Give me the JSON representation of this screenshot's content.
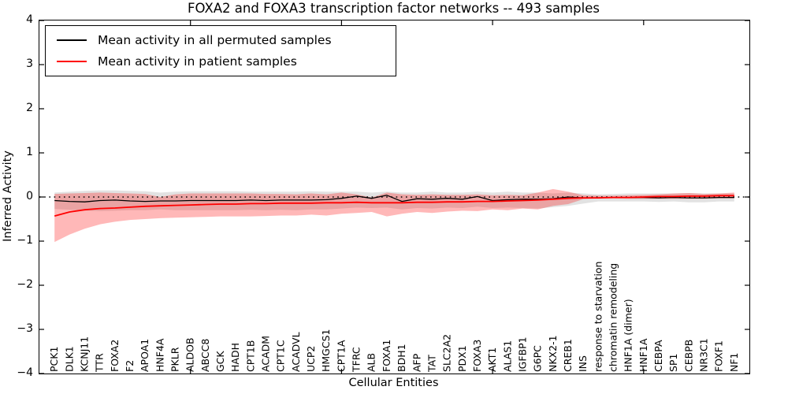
{
  "legend": {
    "items": [
      {
        "label": "Mean activity in all permuted samples",
        "color": "#000000"
      },
      {
        "label": "Mean activity in patient samples",
        "color": "#ff0000"
      }
    ]
  },
  "chart_data": {
    "type": "line",
    "title": "FOXA2 and FOXA3 transcription factor networks -- 493 samples",
    "xlabel": "Cellular Entities",
    "ylabel": "Inferred Activity",
    "ylim": [
      -4,
      4
    ],
    "yticks": [
      4,
      3,
      2,
      1,
      0,
      -1,
      -2,
      -3,
      -4
    ],
    "x_major_ticks": [
      10,
      20,
      30,
      40
    ],
    "grid": false,
    "legend_position": "upper left",
    "zero_reference_line": {
      "y": 0,
      "style": "dotted",
      "color": "#000000"
    },
    "categories": [
      "PCK1",
      "DLK1",
      "KCNJ11",
      "TTR",
      "FOXA2",
      "F2",
      "APOA1",
      "HNF4A",
      "PKLR",
      "ALDOB",
      "ABCC8",
      "GCK",
      "HADH",
      "CPT1B",
      "ACADM",
      "CPT1C",
      "ACADVL",
      "UCP2",
      "HMGCS1",
      "CPT1A",
      "TFRC",
      "ALB",
      "FOXA1",
      "BDH1",
      "AFP",
      "TAT",
      "SLC2A2",
      "PDX1",
      "FOXA3",
      "AKT1",
      "ALAS1",
      "IGFBP1",
      "G6PC",
      "NKX2-1",
      "CREB1",
      "INS",
      "response to starvation",
      "chromatin remodeling",
      "HNF1A (dimer)",
      "HNF1A",
      "CEBPA",
      "SP1",
      "CEBPB",
      "NR3C1",
      "FOXF1",
      "NF1"
    ],
    "series": [
      {
        "id": "permuted-mean-line",
        "name": "Mean activity in all permuted samples",
        "color": "#000000",
        "width": 1.3,
        "values": [
          -0.08,
          -0.1,
          -0.11,
          -0.08,
          -0.07,
          -0.09,
          -0.1,
          -0.09,
          -0.09,
          -0.08,
          -0.08,
          -0.08,
          -0.08,
          -0.07,
          -0.08,
          -0.07,
          -0.07,
          -0.07,
          -0.06,
          -0.03,
          0.02,
          -0.03,
          0.04,
          -0.1,
          -0.04,
          -0.05,
          -0.03,
          -0.05,
          0.01,
          -0.08,
          -0.06,
          -0.05,
          -0.05,
          -0.04,
          0.0,
          -0.02,
          -0.02,
          -0.01,
          -0.01,
          -0.01,
          -0.02,
          -0.01,
          -0.02,
          -0.02,
          -0.01,
          -0.01
        ]
      },
      {
        "id": "patient-mean-line",
        "name": "Mean activity in patient samples",
        "color": "#ff0000",
        "width": 1.8,
        "values": [
          -0.43,
          -0.34,
          -0.29,
          -0.26,
          -0.25,
          -0.23,
          -0.21,
          -0.2,
          -0.19,
          -0.18,
          -0.17,
          -0.16,
          -0.16,
          -0.15,
          -0.15,
          -0.14,
          -0.14,
          -0.14,
          -0.13,
          -0.13,
          -0.12,
          -0.13,
          -0.13,
          -0.13,
          -0.12,
          -0.12,
          -0.11,
          -0.11,
          -0.1,
          -0.1,
          -0.09,
          -0.08,
          -0.07,
          -0.05,
          -0.03,
          -0.02,
          -0.02,
          -0.01,
          -0.01,
          0.0,
          0.01,
          0.01,
          0.02,
          0.02,
          0.03,
          0.03
        ]
      }
    ],
    "bands": [
      {
        "name": "permuted-band",
        "color": "#969696",
        "opacity": 0.28,
        "upper": [
          0.1,
          0.12,
          0.14,
          0.15,
          0.15,
          0.14,
          0.13,
          0.1,
          0.12,
          0.13,
          0.13,
          0.13,
          0.13,
          0.12,
          0.12,
          0.12,
          0.12,
          0.13,
          0.12,
          0.12,
          0.12,
          0.1,
          0.12,
          0.1,
          0.1,
          0.12,
          0.1,
          0.1,
          0.12,
          0.1,
          0.12,
          0.1,
          0.1,
          0.08,
          0.1,
          0.08,
          0.06,
          0.07,
          0.08,
          0.08,
          0.08,
          0.08,
          0.09,
          0.08,
          0.08,
          0.08
        ],
        "lower": [
          -0.27,
          -0.29,
          -0.31,
          -0.32,
          -0.31,
          -0.3,
          -0.3,
          -0.28,
          -0.3,
          -0.3,
          -0.3,
          -0.3,
          -0.3,
          -0.29,
          -0.3,
          -0.29,
          -0.3,
          -0.28,
          -0.28,
          -0.26,
          -0.24,
          -0.25,
          -0.24,
          -0.28,
          -0.25,
          -0.26,
          -0.24,
          -0.25,
          -0.22,
          -0.25,
          -0.24,
          -0.25,
          -0.26,
          -0.23,
          -0.2,
          -0.15,
          -0.1,
          -0.1,
          -0.1,
          -0.1,
          -0.11,
          -0.1,
          -0.12,
          -0.12,
          -0.1,
          -0.1
        ]
      },
      {
        "name": "patient-band",
        "color": "#ff0000",
        "opacity": 0.28,
        "upper": [
          0.07,
          0.08,
          0.09,
          0.1,
          0.09,
          0.08,
          0.07,
          0.0,
          0.06,
          0.08,
          0.08,
          0.08,
          0.08,
          0.08,
          0.07,
          0.07,
          0.06,
          0.08,
          0.06,
          0.1,
          0.06,
          -0.01,
          0.1,
          0.06,
          0.05,
          0.06,
          0.05,
          0.05,
          0.06,
          0.04,
          0.05,
          0.04,
          0.1,
          0.18,
          0.12,
          0.04,
          0.03,
          0.03,
          0.04,
          0.05,
          0.06,
          0.08,
          0.09,
          0.07,
          0.08,
          0.1
        ],
        "lower": [
          -1.02,
          -0.85,
          -0.72,
          -0.62,
          -0.56,
          -0.52,
          -0.5,
          -0.48,
          -0.47,
          -0.46,
          -0.45,
          -0.44,
          -0.44,
          -0.44,
          -0.43,
          -0.42,
          -0.42,
          -0.4,
          -0.42,
          -0.38,
          -0.36,
          -0.34,
          -0.44,
          -0.38,
          -0.34,
          -0.36,
          -0.33,
          -0.31,
          -0.32,
          -0.28,
          -0.3,
          -0.26,
          -0.28,
          -0.2,
          -0.16,
          -0.05,
          -0.03,
          -0.03,
          -0.04,
          -0.04,
          -0.04,
          -0.04,
          -0.04,
          -0.04,
          -0.03,
          -0.03
        ]
      }
    ]
  }
}
